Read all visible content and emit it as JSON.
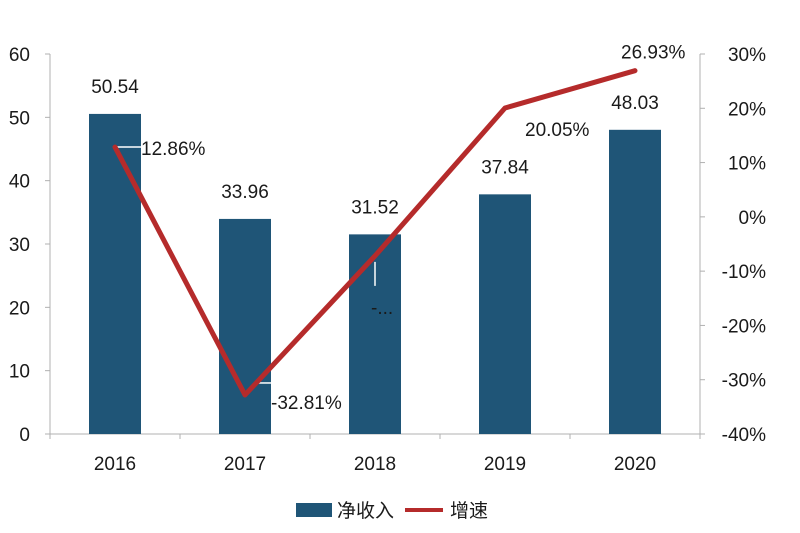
{
  "chart_data": {
    "type": "bar+line",
    "categories": [
      "2016",
      "2017",
      "2018",
      "2019",
      "2020"
    ],
    "bar_series": {
      "name": "净收入",
      "values": [
        50.54,
        33.96,
        31.52,
        37.84,
        48.03
      ],
      "labels": [
        "50.54",
        "33.96",
        "31.52",
        "37.84",
        "48.03"
      ],
      "color": "#1f5577"
    },
    "line_series": {
      "name": "增速",
      "values": [
        12.86,
        -32.81,
        -7.19,
        20.05,
        26.93
      ],
      "labels": [
        "12.86%",
        "-32.81%",
        "-...",
        "20.05%",
        "26.93%"
      ],
      "color": "#b52b2b"
    },
    "y_left": {
      "min": 0,
      "max": 60,
      "ticks": [
        "0",
        "10",
        "20",
        "30",
        "40",
        "50",
        "60"
      ]
    },
    "y_right": {
      "min": -40,
      "max": 30,
      "ticks": [
        "-40%",
        "-30%",
        "-20%",
        "-10%",
        "0%",
        "10%",
        "20%",
        "30%"
      ]
    },
    "legend": {
      "position": "bottom",
      "items": [
        "净收入",
        "增速"
      ]
    }
  }
}
